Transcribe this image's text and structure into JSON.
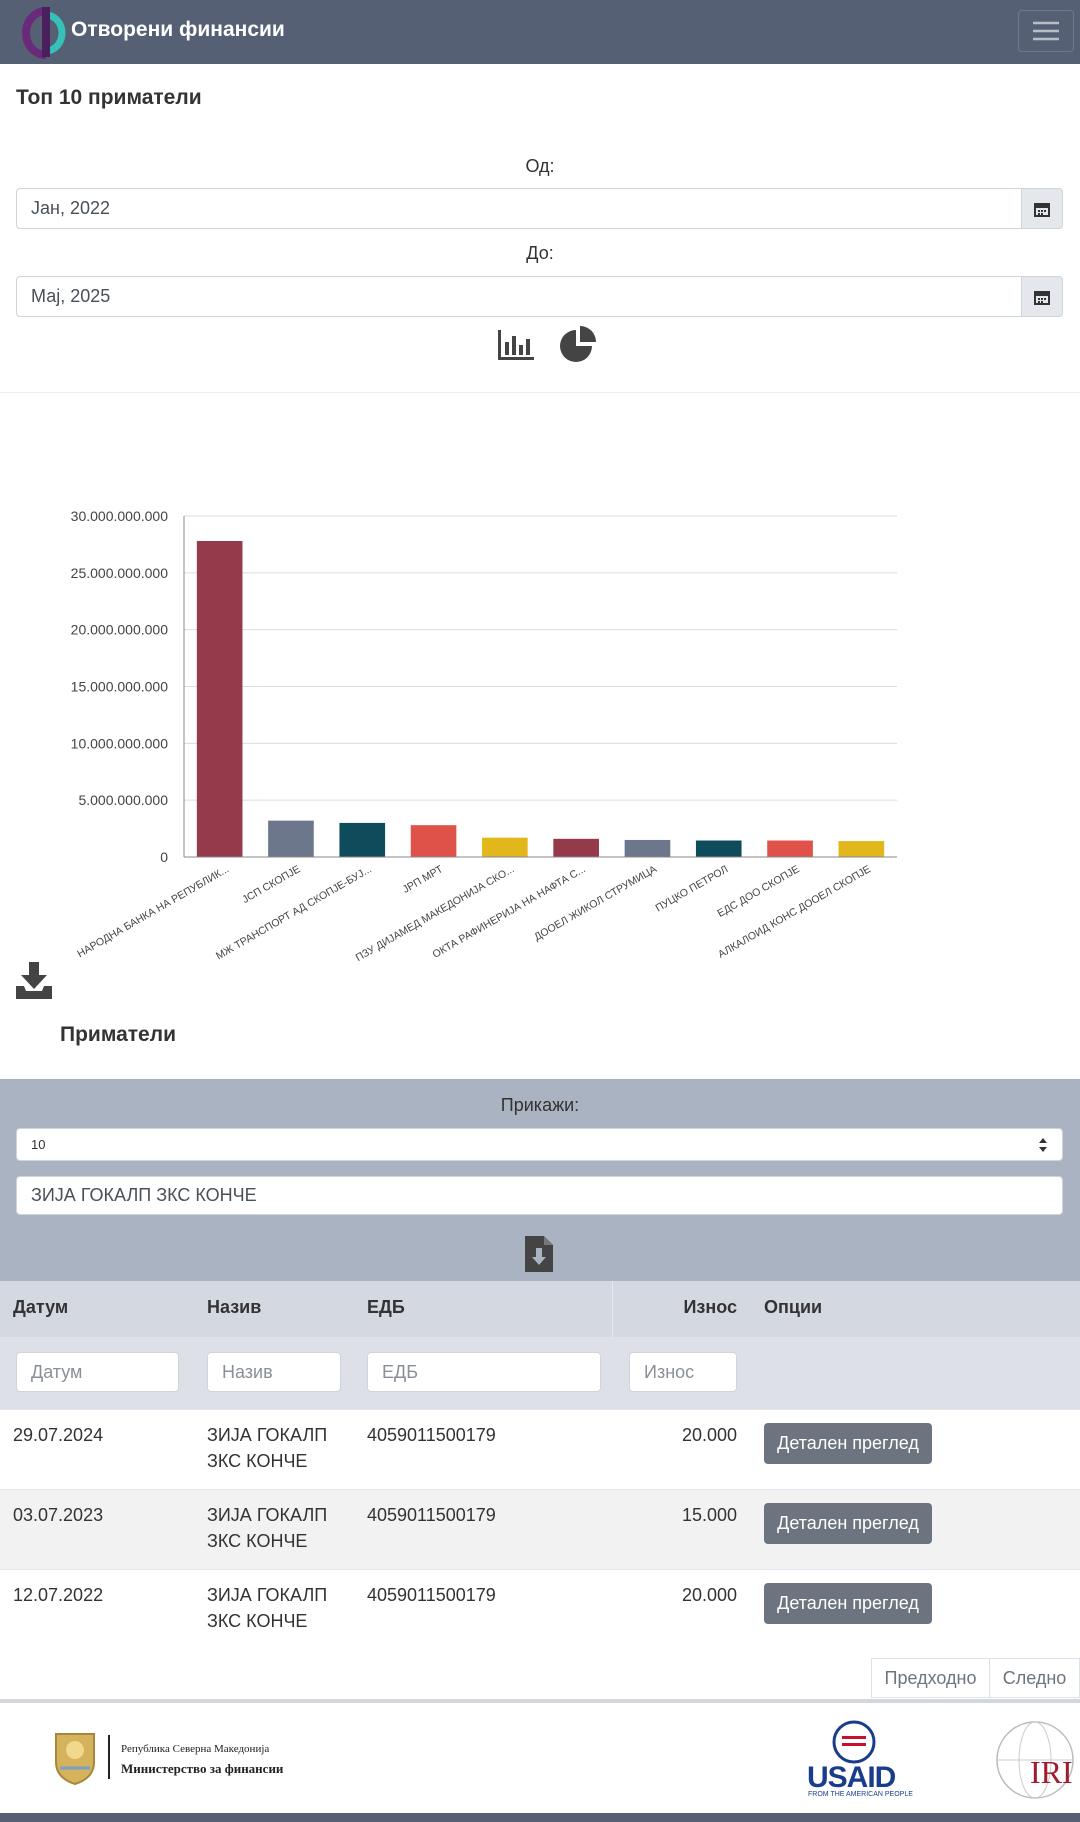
{
  "header": {
    "title": "Отворени финансии"
  },
  "page_title": "Топ 10 приматели",
  "filters": {
    "from_label": "Од:",
    "from_value": "Јан, 2022",
    "to_label": "До:",
    "to_value": "Мај, 2025"
  },
  "chart_data": {
    "type": "bar",
    "categories": [
      "НАРОДНА БАНКА НА РЕПУБЛИК...",
      "ЈСП СКОПЈЕ",
      "МЖ ТРАНСПОРТ АД СКОПЈЕ-БУЈ...",
      "ЈРП МРТ",
      "ПЗУ ДИЈАМЕД МАКЕДОНИЈА СКО...",
      "ОКТА РАФИНЕРИЈА НА НАФТА С...",
      "ДООЕЛ ЖИКОЛ СТРУМИЦА",
      "ПУЦКО ПЕТРОЛ",
      "ЕДС ДОО СКОПЈЕ",
      "АЛКАЛОИД КОНС ДООЕЛ СКОПЈЕ"
    ],
    "values": [
      27800000000,
      3200000000,
      3000000000,
      2800000000,
      1700000000,
      1600000000,
      1500000000,
      1450000000,
      1450000000,
      1400000000
    ],
    "colors": [
      "#943a4b",
      "#6c778b",
      "#0e4b5b",
      "#df5249",
      "#e2b71c",
      "#943a4b",
      "#6c778b",
      "#0e4b5b",
      "#df5249",
      "#e2b71c"
    ],
    "ylim": [
      0,
      30000000000
    ],
    "yticks": [
      0,
      {
        "value": 5000000000,
        "label": "5.000.000.000"
      },
      {
        "value": 10000000000,
        "label": "10.000.000.000"
      },
      {
        "value": 15000000000,
        "label": "15.000.000.000"
      },
      {
        "value": 20000000000,
        "label": "20.000.000.000"
      },
      {
        "value": 25000000000,
        "label": "25.000.000.000"
      },
      {
        "value": 30000000000,
        "label": "30.000.000.000"
      }
    ],
    "grid": true
  },
  "section_title": "Приматели",
  "controls": {
    "show_label": "Прикажи:",
    "page_size": "10",
    "search": "ЗИЈА ГОКАЛП ЗКС КОНЧЕ"
  },
  "table": {
    "columns": [
      "Датум",
      "Назив",
      "ЕДБ",
      "Износ",
      "Опции"
    ],
    "filters": [
      "Датум",
      "Назив",
      "ЕДБ",
      "Износ"
    ],
    "rows": [
      [
        "29.07.2024",
        "ЗИЈА ГОКАЛП ЗКС КОНЧЕ",
        "4059011500179",
        "20.000",
        "Детален преглед"
      ],
      [
        "03.07.2023",
        "ЗИЈА ГОКАЛП ЗКС КОНЧЕ",
        "4059011500179",
        "15.000",
        "Детален преглед"
      ],
      [
        "12.07.2022",
        "ЗИЈА ГОКАЛП ЗКС КОНЧЕ",
        "4059011500179",
        "20.000",
        "Детален преглед"
      ]
    ]
  },
  "pagination": {
    "prev": "Предходно",
    "next": "Следно"
  },
  "footer": {
    "ministry_line1": "Република Северна Македонија",
    "ministry_line2": "Министерство за финансии",
    "usaid": "USAID",
    "usaid_tagline": "FROM THE AMERICAN PEOPLE",
    "iri": "IRI"
  }
}
